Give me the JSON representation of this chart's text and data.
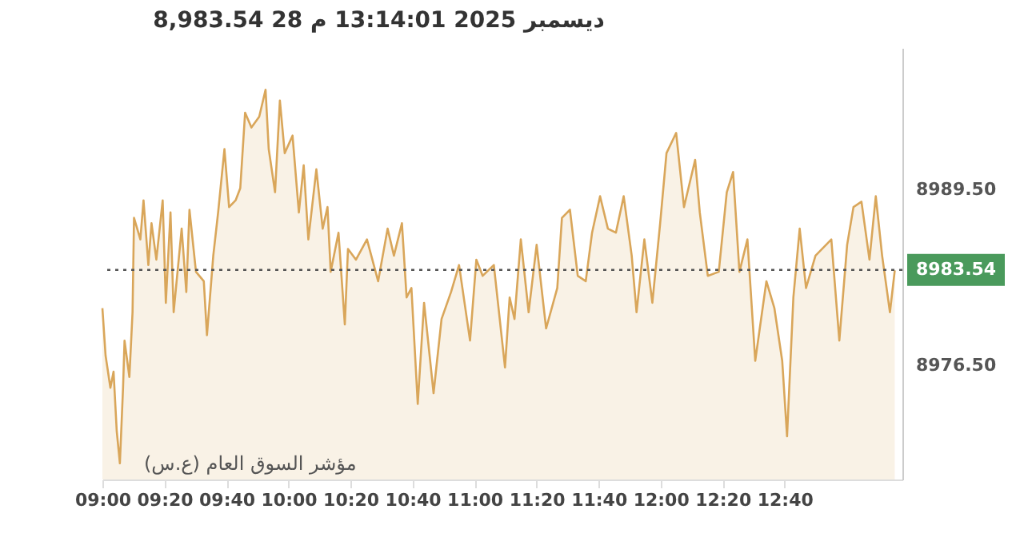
{
  "chart_data": {
    "type": "area",
    "title": "8,983.54   28 ديسمبر 2025   13:14:01 م",
    "annotations": [
      "مؤشر السوق العام (ع.س)"
    ],
    "x": [
      9.0,
      9.017,
      9.043,
      9.06,
      9.077,
      9.094,
      9.111,
      9.119,
      9.145,
      9.162,
      9.17,
      9.204,
      9.221,
      9.247,
      9.264,
      9.29,
      9.324,
      9.341,
      9.366,
      9.383,
      9.426,
      9.451,
      9.468,
      9.503,
      9.545,
      9.562,
      9.596,
      9.622,
      9.656,
      9.681,
      9.716,
      9.741,
      9.767,
      9.801,
      9.843,
      9.877,
      9.894,
      9.928,
      9.954,
      9.98,
      10.022,
      10.056,
      10.082,
      10.107,
      10.15,
      10.184,
      10.21,
      10.227,
      10.269,
      10.303,
      10.32,
      10.363,
      10.422,
      10.482,
      10.533,
      10.567,
      10.61,
      10.635,
      10.661,
      10.695,
      10.729,
      10.78,
      10.823,
      10.874,
      10.917,
      10.976,
      11.01,
      11.044,
      11.104,
      11.164,
      11.189,
      11.215,
      11.249,
      11.291,
      11.334,
      11.385,
      11.445,
      11.47,
      11.513,
      11.555,
      11.598,
      11.632,
      11.675,
      11.717,
      11.76,
      11.802,
      11.845,
      11.871,
      11.913,
      11.956,
      11.998,
      12.032,
      12.084,
      12.126,
      12.186,
      12.211,
      12.254,
      12.313,
      12.356,
      12.39,
      12.424,
      12.467,
      12.509,
      12.569,
      12.612,
      12.654,
      12.68,
      12.714,
      12.748,
      12.782,
      12.833,
      12.918,
      12.961,
      13.003,
      13.037,
      13.08,
      13.123,
      13.157,
      13.191,
      13.233,
      13.259
    ],
    "series": [
      {
        "color": "#d9a65a",
        "values": [
          8980.7,
          8977.2,
          8974.8,
          8976.0,
          8971.6,
          8969.2,
          8974.8,
          8978.3,
          8975.6,
          8980.4,
          8987.4,
          8985.8,
          8988.7,
          8983.9,
          8987.0,
          8984.3,
          8988.7,
          8981.1,
          8987.8,
          8980.4,
          8986.6,
          8981.9,
          8988.0,
          8983.4,
          8982.7,
          8978.7,
          8984.6,
          8987.8,
          8992.5,
          8988.2,
          8988.7,
          8989.6,
          8995.2,
          8994.1,
          8994.9,
          8996.9,
          8992.5,
          8989.3,
          8996.1,
          8992.2,
          8993.5,
          8987.8,
          8991.3,
          8985.8,
          8991.0,
          8986.6,
          8988.2,
          8983.4,
          8986.3,
          8979.5,
          8985.1,
          8984.3,
          8985.8,
          8982.7,
          8986.6,
          8984.6,
          8987.0,
          8981.5,
          8982.2,
          8973.6,
          8981.1,
          8974.4,
          8979.9,
          8981.9,
          8983.9,
          8978.3,
          8984.3,
          8983.1,
          8983.9,
          8976.3,
          8981.5,
          8979.9,
          8985.8,
          8980.4,
          8985.4,
          8979.2,
          8982.2,
          8987.4,
          8988.0,
          8983.1,
          8982.7,
          8986.3,
          8989.0,
          8986.6,
          8986.3,
          8989.0,
          8984.6,
          8980.4,
          8985.8,
          8981.1,
          8987.0,
          8992.2,
          8993.7,
          8988.2,
          8991.7,
          8987.8,
          8983.1,
          8983.4,
          8989.3,
          8990.8,
          8983.4,
          8985.8,
          8976.8,
          8982.7,
          8980.7,
          8976.8,
          8971.2,
          8981.5,
          8986.6,
          8982.2,
          8984.6,
          8985.8,
          8978.3,
          8985.4,
          8988.2,
          8988.6,
          8984.3,
          8989.0,
          8984.6,
          8980.4,
          8983.5
        ]
      }
    ],
    "xlim": [
      9.0,
      13.3
    ],
    "xticks": [
      {
        "value": 9.0,
        "label": "09:00"
      },
      {
        "value": 9.3333,
        "label": "09:20"
      },
      {
        "value": 9.6667,
        "label": "09:40"
      },
      {
        "value": 10.0,
        "label": "10:00"
      },
      {
        "value": 10.3333,
        "label": "10:20"
      },
      {
        "value": 10.6667,
        "label": "10:40"
      },
      {
        "value": 11.0,
        "label": "11:00"
      },
      {
        "value": 11.3333,
        "label": "11:20"
      },
      {
        "value": 11.6667,
        "label": "11:40"
      },
      {
        "value": 12.0,
        "label": "12:00"
      },
      {
        "value": 12.3333,
        "label": "12:20"
      },
      {
        "value": 12.6667,
        "label": "12:40"
      }
    ],
    "ylim": [
      8968,
      9000
    ],
    "yticks": [
      {
        "value": 8976.5,
        "label": "8976.50"
      },
      {
        "value": 8989.5,
        "label": "8989.50"
      }
    ],
    "ref_lines": [
      {
        "axis": "y",
        "value": 8983.54,
        "label": "8983.54",
        "color": "#555555",
        "line_style": "dotted"
      }
    ]
  }
}
